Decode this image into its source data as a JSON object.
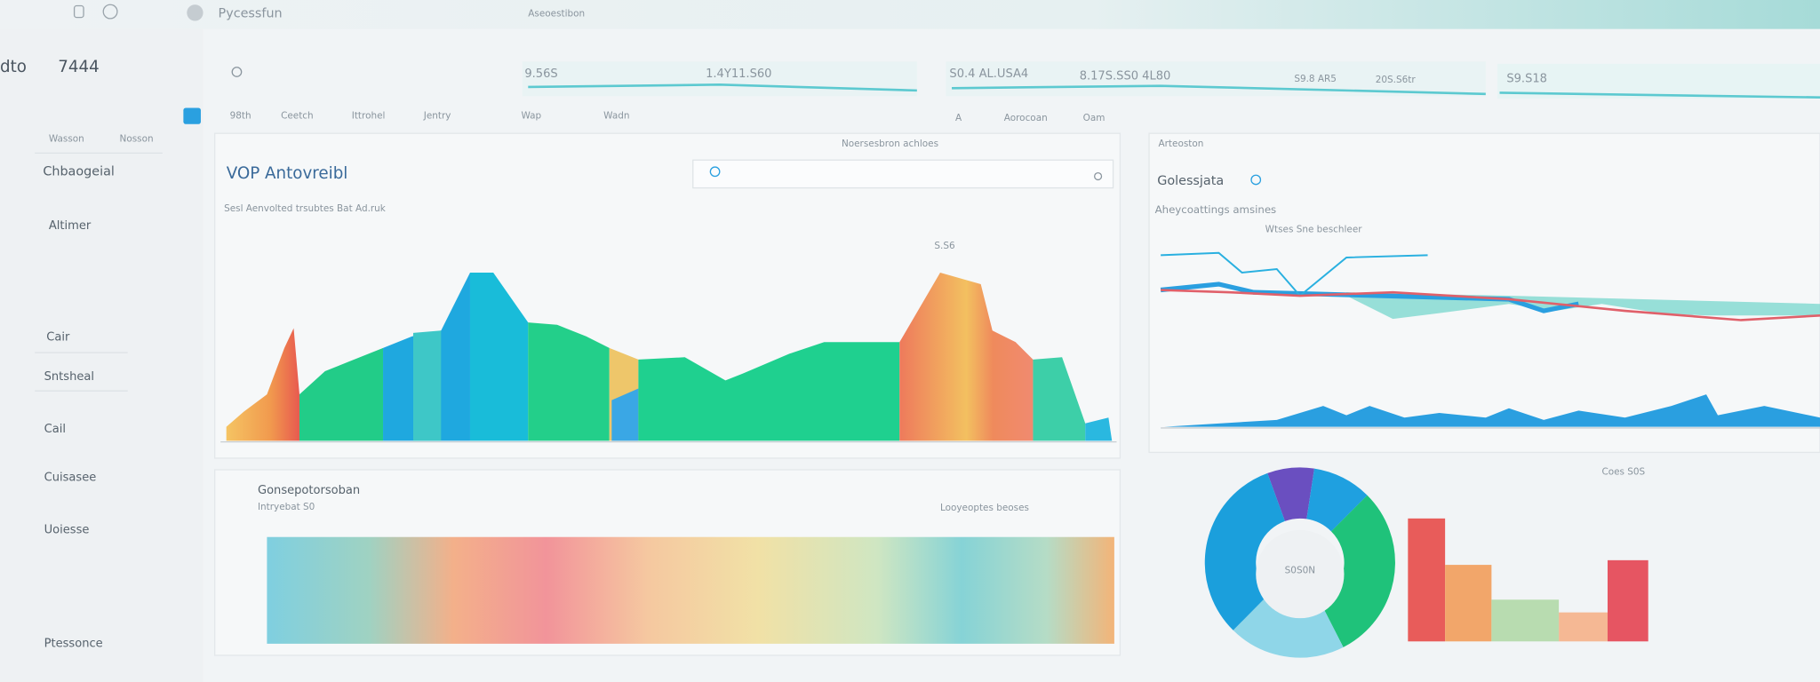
{
  "topbar": {
    "app_name": "Pycessfun",
    "center_label": "Aseoestibon"
  },
  "sidebar": {
    "title": "dto",
    "count": "7444",
    "tabs": [
      "Wasson",
      "Nosson"
    ],
    "items": [
      "Chbaogeial",
      "Altimer",
      "Cair",
      "Sntsheal",
      "Cail",
      "Cuisasee",
      "Uoiesse",
      "Ptessonce"
    ]
  },
  "stats": [
    "9.56S",
    "1.4Y11.S60",
    "S0.4 AL.USA4",
    "8.17S.SS0 4L80",
    "S9.8 AR5",
    "20S.S6tr",
    "S9.S18"
  ],
  "nav": [
    "98th",
    "Ceetch",
    "Ittrohel",
    "Jentry",
    "Wap",
    "Wadn",
    "A",
    "Aorocoan",
    "Oam"
  ],
  "main_panel": {
    "header_note": "Noersesbron achloes",
    "title": "VOP Antovreibl",
    "subtitle": "Sesl Aenvolted trsubtes Bat Ad.ruk",
    "peak_label": "S.S6"
  },
  "bottom_panel": {
    "title": "Gonsepotorsoban",
    "subtitle": "Intryebat S0",
    "note": "Looyeoptes beoses"
  },
  "right_panel": {
    "header_note": "Arteoston",
    "title": "Golessjata",
    "subtitle": "Aheycoattings amsines",
    "line_label": "Wtses Sne beschleer",
    "donut_center": "S0S0N",
    "corner_note": "Coes S0S"
  }
}
